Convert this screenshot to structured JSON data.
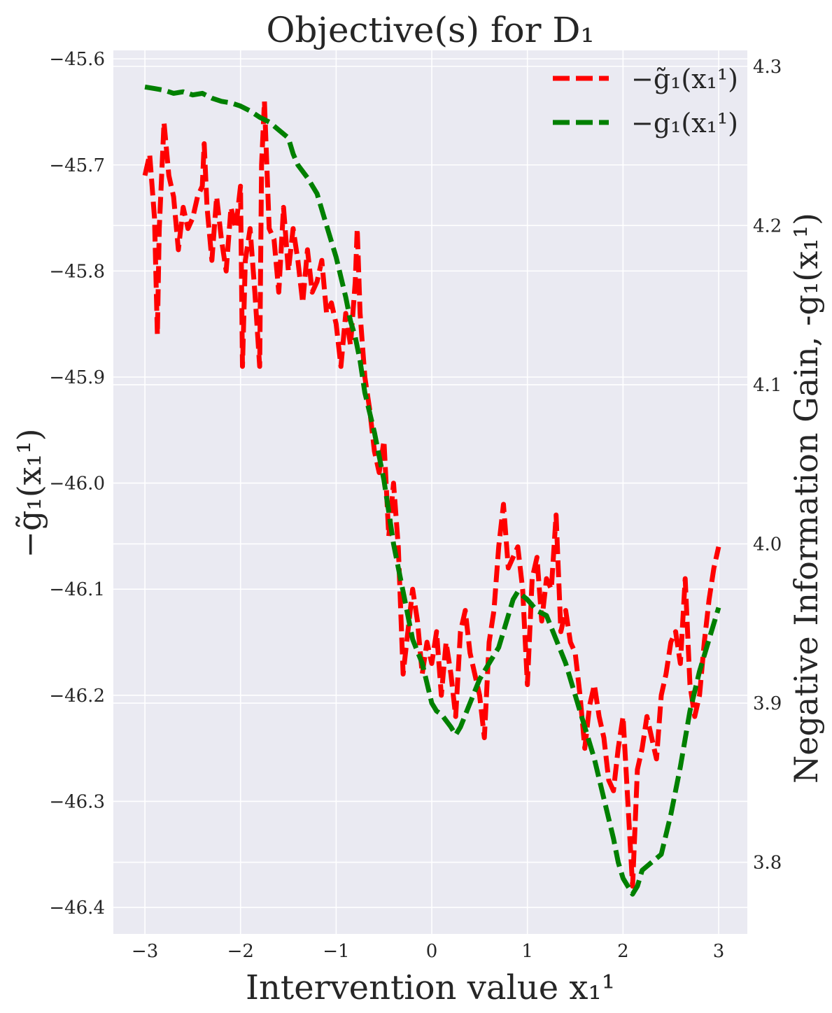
{
  "chart_data": {
    "type": "line",
    "title": "Objective(s) for D₁",
    "xlabel": "Intervention value x₁¹",
    "ylabel_left": "−g̃₁(x₁¹)",
    "ylabel_right": "Negative Information Gain, -g₁(x₁¹)",
    "xlim": [
      -3.33,
      3.3
    ],
    "ylim_left": [
      -46.425,
      -45.592
    ],
    "ylim_right": [
      3.755,
      4.31
    ],
    "xticks": [
      -3,
      -2,
      -1,
      0,
      1,
      2,
      3
    ],
    "xtick_labels": [
      "−3",
      "−2",
      "−1",
      "0",
      "1",
      "2",
      "3"
    ],
    "yticks_left": [
      -45.6,
      -45.7,
      -45.8,
      -45.9,
      -46.0,
      -46.1,
      -46.2,
      -46.3,
      -46.4
    ],
    "ytick_labels_left": [
      "−45.6",
      "−45.7",
      "−45.8",
      "−45.9",
      "−46.0",
      "−46.1",
      "−46.2",
      "−46.3",
      "−46.4"
    ],
    "yticks_right": [
      4.3,
      4.2,
      4.1,
      4.0,
      3.9,
      3.8
    ],
    "ytick_labels_right": [
      "4.3",
      "4.2",
      "4.1",
      "4.0",
      "3.9",
      "3.8"
    ],
    "grid": true,
    "legend_position": "top-right",
    "series": [
      {
        "name": "−g̃₁(x₁¹)",
        "axis": "left",
        "color": "#ff0000",
        "style": "dashed",
        "x": [
          -3.0,
          -2.95,
          -2.9,
          -2.87,
          -2.85,
          -2.8,
          -2.75,
          -2.7,
          -2.65,
          -2.6,
          -2.55,
          -2.5,
          -2.45,
          -2.4,
          -2.38,
          -2.35,
          -2.3,
          -2.25,
          -2.2,
          -2.15,
          -2.1,
          -2.05,
          -2.0,
          -1.98,
          -1.95,
          -1.9,
          -1.85,
          -1.8,
          -1.78,
          -1.75,
          -1.7,
          -1.65,
          -1.6,
          -1.55,
          -1.5,
          -1.45,
          -1.4,
          -1.35,
          -1.3,
          -1.25,
          -1.2,
          -1.15,
          -1.1,
          -1.05,
          -1.0,
          -0.95,
          -0.9,
          -0.85,
          -0.8,
          -0.78,
          -0.75,
          -0.7,
          -0.65,
          -0.6,
          -0.55,
          -0.5,
          -0.45,
          -0.4,
          -0.35,
          -0.3,
          -0.25,
          -0.2,
          -0.15,
          -0.1,
          -0.05,
          0.0,
          0.05,
          0.1,
          0.15,
          0.2,
          0.25,
          0.3,
          0.35,
          0.4,
          0.45,
          0.5,
          0.55,
          0.6,
          0.65,
          0.7,
          0.75,
          0.8,
          0.85,
          0.9,
          0.95,
          1.0,
          1.05,
          1.1,
          1.15,
          1.2,
          1.25,
          1.3,
          1.35,
          1.4,
          1.45,
          1.5,
          1.55,
          1.6,
          1.65,
          1.7,
          1.75,
          1.8,
          1.85,
          1.9,
          1.95,
          2.0,
          2.05,
          2.1,
          2.15,
          2.2,
          2.25,
          2.3,
          2.35,
          2.4,
          2.45,
          2.5,
          2.55,
          2.6,
          2.65,
          2.7,
          2.75,
          2.8,
          2.85,
          2.9,
          2.95,
          3.0
        ],
        "y": [
          -45.71,
          -45.69,
          -45.75,
          -45.86,
          -45.76,
          -45.66,
          -45.71,
          -45.73,
          -45.78,
          -45.74,
          -45.76,
          -45.75,
          -45.73,
          -45.72,
          -45.68,
          -45.74,
          -45.79,
          -45.73,
          -45.77,
          -45.8,
          -45.74,
          -45.76,
          -45.72,
          -45.89,
          -45.79,
          -45.76,
          -45.82,
          -45.89,
          -45.7,
          -45.64,
          -45.76,
          -45.77,
          -45.82,
          -45.74,
          -45.8,
          -45.76,
          -45.79,
          -45.83,
          -45.78,
          -45.82,
          -45.81,
          -45.79,
          -45.84,
          -45.83,
          -45.85,
          -45.89,
          -45.84,
          -45.87,
          -45.81,
          -45.76,
          -45.84,
          -45.9,
          -45.93,
          -45.97,
          -45.99,
          -45.96,
          -46.05,
          -46.0,
          -46.06,
          -46.18,
          -46.14,
          -46.1,
          -46.13,
          -46.18,
          -46.15,
          -46.17,
          -46.14,
          -46.2,
          -46.15,
          -46.18,
          -46.22,
          -46.14,
          -46.12,
          -46.16,
          -46.18,
          -46.2,
          -46.24,
          -46.15,
          -46.12,
          -46.06,
          -46.02,
          -46.08,
          -46.07,
          -46.06,
          -46.1,
          -46.19,
          -46.09,
          -46.07,
          -46.13,
          -46.09,
          -46.1,
          -46.03,
          -46.14,
          -46.12,
          -46.15,
          -46.16,
          -46.2,
          -46.25,
          -46.21,
          -46.19,
          -46.22,
          -46.24,
          -46.28,
          -46.29,
          -46.25,
          -46.22,
          -46.3,
          -46.38,
          -46.27,
          -46.25,
          -46.22,
          -46.24,
          -46.26,
          -46.2,
          -46.18,
          -46.15,
          -46.14,
          -46.17,
          -46.09,
          -46.19,
          -46.22,
          -46.2,
          -46.15,
          -46.11,
          -46.08,
          -46.06
        ]
      },
      {
        "name": "−g₁(x₁¹)",
        "axis": "right",
        "color": "#008000",
        "style": "dashed",
        "x": [
          -3.0,
          -2.9,
          -2.8,
          -2.7,
          -2.6,
          -2.5,
          -2.4,
          -2.3,
          -2.2,
          -2.1,
          -2.0,
          -1.9,
          -1.8,
          -1.7,
          -1.6,
          -1.5,
          -1.45,
          -1.4,
          -1.3,
          -1.2,
          -1.1,
          -1.0,
          -0.9,
          -0.85,
          -0.8,
          -0.75,
          -0.7,
          -0.6,
          -0.5,
          -0.45,
          -0.4,
          -0.35,
          -0.3,
          -0.2,
          -0.1,
          0.0,
          0.05,
          0.1,
          0.2,
          0.25,
          0.3,
          0.4,
          0.5,
          0.6,
          0.7,
          0.8,
          0.85,
          0.9,
          1.0,
          1.1,
          1.2,
          1.3,
          1.4,
          1.5,
          1.6,
          1.7,
          1.8,
          1.9,
          1.95,
          2.0,
          2.05,
          2.1,
          2.15,
          2.2,
          2.3,
          2.4,
          2.5,
          2.6,
          2.7,
          2.8,
          2.9,
          3.0
        ],
        "y": [
          4.287,
          4.286,
          4.285,
          4.283,
          4.284,
          4.282,
          4.283,
          4.28,
          4.278,
          4.277,
          4.275,
          4.272,
          4.268,
          4.265,
          4.26,
          4.255,
          4.245,
          4.238,
          4.23,
          4.22,
          4.2,
          4.18,
          4.155,
          4.14,
          4.13,
          4.115,
          4.095,
          4.07,
          4.04,
          4.02,
          4.0,
          3.985,
          3.97,
          3.94,
          3.925,
          3.9,
          3.895,
          3.893,
          3.885,
          3.88,
          3.885,
          3.9,
          3.915,
          3.925,
          3.935,
          3.955,
          3.965,
          3.97,
          3.965,
          3.958,
          3.955,
          3.94,
          3.925,
          3.905,
          3.885,
          3.865,
          3.84,
          3.815,
          3.8,
          3.79,
          3.785,
          3.78,
          3.785,
          3.795,
          3.8,
          3.805,
          3.83,
          3.86,
          3.895,
          3.92,
          3.94,
          3.96
        ]
      }
    ]
  }
}
